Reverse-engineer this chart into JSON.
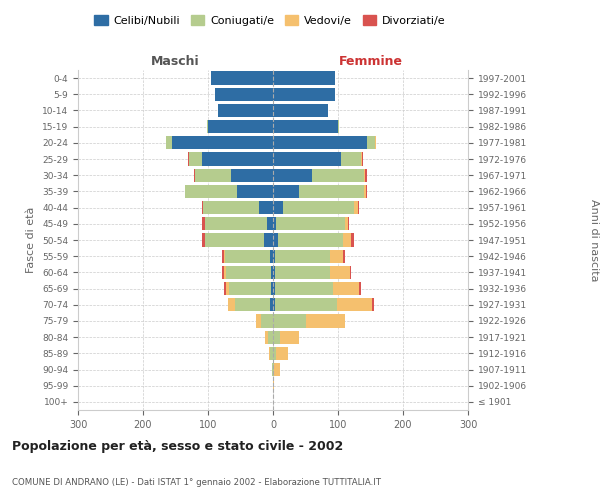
{
  "age_groups": [
    "100+",
    "95-99",
    "90-94",
    "85-89",
    "80-84",
    "75-79",
    "70-74",
    "65-69",
    "60-64",
    "55-59",
    "50-54",
    "45-49",
    "40-44",
    "35-39",
    "30-34",
    "25-29",
    "20-24",
    "15-19",
    "10-14",
    "5-9",
    "0-4"
  ],
  "birth_years": [
    "≤ 1901",
    "1902-1906",
    "1907-1911",
    "1912-1916",
    "1917-1921",
    "1922-1926",
    "1927-1931",
    "1932-1936",
    "1937-1941",
    "1942-1946",
    "1947-1951",
    "1952-1956",
    "1957-1961",
    "1962-1966",
    "1967-1971",
    "1972-1976",
    "1977-1981",
    "1982-1986",
    "1987-1991",
    "1992-1996",
    "1997-2001"
  ],
  "male": {
    "celibi": [
      0,
      0,
      0,
      0,
      0,
      0,
      4,
      3,
      3,
      4,
      14,
      10,
      22,
      55,
      65,
      110,
      155,
      100,
      85,
      90,
      95
    ],
    "coniugati": [
      0,
      0,
      1,
      4,
      8,
      18,
      55,
      65,
      70,
      70,
      90,
      95,
      85,
      80,
      55,
      20,
      10,
      2,
      0,
      0,
      0
    ],
    "vedovi": [
      0,
      0,
      0,
      2,
      4,
      8,
      10,
      5,
      3,
      2,
      1,
      0,
      0,
      0,
      0,
      0,
      0,
      0,
      0,
      0,
      0
    ],
    "divorziati": [
      0,
      0,
      0,
      0,
      0,
      0,
      0,
      2,
      2,
      2,
      4,
      4,
      3,
      1,
      1,
      1,
      0,
      0,
      0,
      0,
      0
    ]
  },
  "female": {
    "nubili": [
      0,
      0,
      0,
      0,
      0,
      0,
      3,
      3,
      3,
      3,
      8,
      5,
      15,
      40,
      60,
      105,
      145,
      100,
      85,
      95,
      95
    ],
    "coniugate": [
      0,
      0,
      1,
      5,
      10,
      50,
      95,
      90,
      85,
      85,
      100,
      105,
      110,
      100,
      80,
      30,
      12,
      2,
      0,
      0,
      0
    ],
    "vedove": [
      0,
      2,
      10,
      18,
      30,
      60,
      55,
      40,
      30,
      20,
      12,
      5,
      5,
      3,
      2,
      2,
      1,
      0,
      0,
      0,
      0
    ],
    "divorziate": [
      0,
      0,
      0,
      0,
      0,
      0,
      2,
      2,
      2,
      2,
      5,
      2,
      3,
      2,
      2,
      1,
      1,
      0,
      0,
      0,
      0
    ]
  },
  "colors": {
    "celibi": "#2e6da4",
    "coniugati": "#b5cc8e",
    "vedovi": "#f5c06e",
    "divorziati": "#d9534f"
  },
  "title": "Popolazione per età, sesso e stato civile - 2002",
  "subtitle": "COMUNE DI ANDRANO (LE) - Dati ISTAT 1° gennaio 2002 - Elaborazione TUTTITALIA.IT",
  "xlabel_left": "Maschi",
  "xlabel_right": "Femmine",
  "ylabel_left": "Fasce di età",
  "ylabel_right": "Anni di nascita",
  "xlim": 300,
  "legend_labels": [
    "Celibi/Nubili",
    "Coniugati/e",
    "Vedovi/e",
    "Divorziati/e"
  ],
  "bg_color": "#ffffff",
  "grid_color": "#cccccc"
}
